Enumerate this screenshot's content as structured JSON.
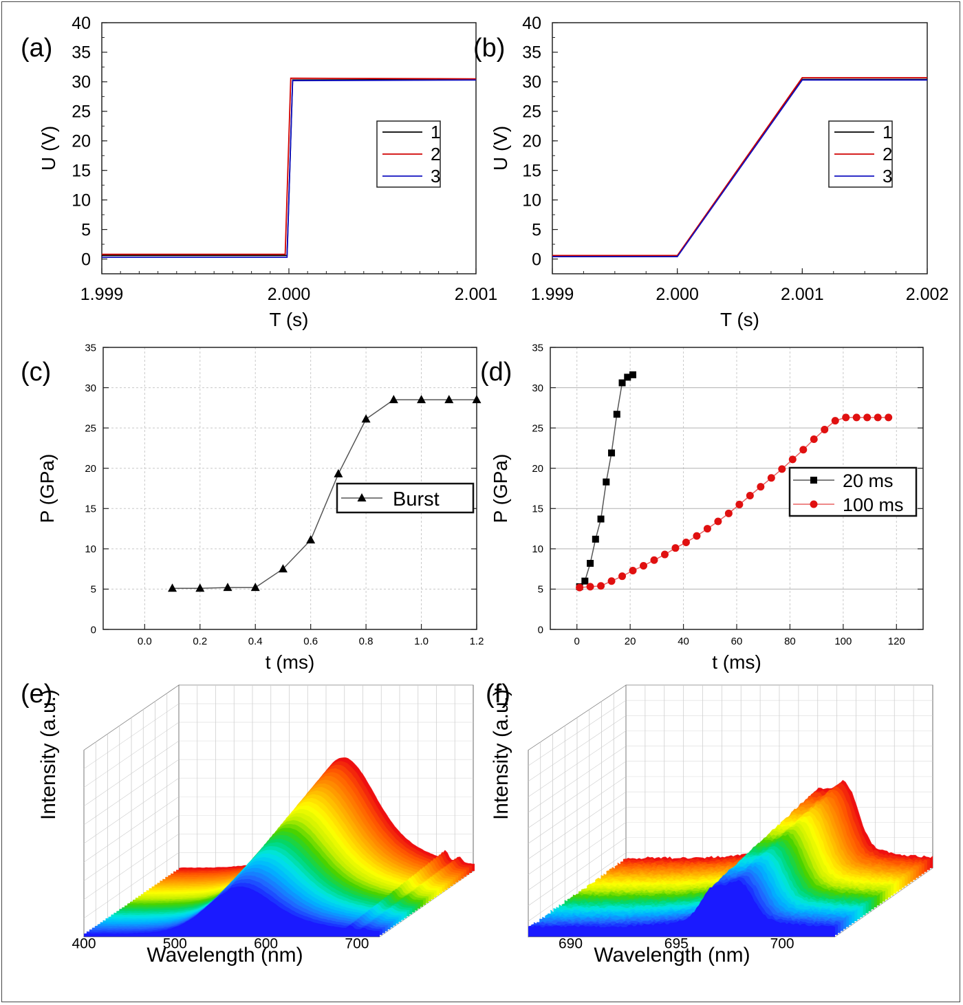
{
  "chart_data": [
    {
      "id": "a",
      "panel_label": "(a)",
      "type": "line",
      "xlabel": "T (s)",
      "ylabel": "U (V)",
      "xlim": [
        1.999,
        2.001
      ],
      "ylim": [
        -2.5,
        40
      ],
      "xticks": [
        "1.999",
        "2.000",
        "2.001"
      ],
      "yticks": [
        "0",
        "5",
        "10",
        "15",
        "20",
        "25",
        "30",
        "35",
        "40"
      ],
      "legend": "right",
      "series": [
        {
          "name": "1",
          "color": "#000000",
          "points": [
            [
              1.999,
              0.6
            ],
            [
              1.99999,
              0.6
            ],
            [
              2.00002,
              30.3
            ],
            [
              2.001,
              30.4
            ]
          ]
        },
        {
          "name": "2",
          "color": "#d00000",
          "points": [
            [
              1.999,
              0.8
            ],
            [
              1.99998,
              0.8
            ],
            [
              2.00001,
              30.6
            ],
            [
              2.001,
              30.5
            ]
          ]
        },
        {
          "name": "3",
          "color": "#1010c0",
          "points": [
            [
              1.999,
              0.3
            ],
            [
              1.99999,
              0.3
            ],
            [
              2.00002,
              30.2
            ],
            [
              2.001,
              30.3
            ]
          ]
        }
      ]
    },
    {
      "id": "b",
      "panel_label": "(b)",
      "type": "line",
      "xlabel": "T (s)",
      "ylabel": "U (V)",
      "xlim": [
        1.999,
        2.002
      ],
      "ylim": [
        -2.5,
        40
      ],
      "xticks": [
        "1.999",
        "2.000",
        "2.001",
        "2.002"
      ],
      "yticks": [
        "0",
        "5",
        "10",
        "15",
        "20",
        "25",
        "30",
        "35",
        "40"
      ],
      "legend": "right",
      "series": [
        {
          "name": "1",
          "color": "#000000",
          "points": [
            [
              1.999,
              0.5
            ],
            [
              2.0,
              0.5
            ],
            [
              2.001,
              30.4
            ],
            [
              2.002,
              30.4
            ]
          ]
        },
        {
          "name": "2",
          "color": "#d00000",
          "points": [
            [
              1.999,
              0.6
            ],
            [
              2.0,
              0.6
            ],
            [
              2.001,
              30.7
            ],
            [
              2.002,
              30.7
            ]
          ]
        },
        {
          "name": "3",
          "color": "#1010c0",
          "points": [
            [
              1.999,
              0.4
            ],
            [
              2.0,
              0.4
            ],
            [
              2.001,
              30.3
            ],
            [
              2.002,
              30.3
            ]
          ]
        }
      ]
    },
    {
      "id": "c",
      "panel_label": "(c)",
      "type": "line",
      "xlabel": "t (ms)",
      "ylabel": "P (GPa)",
      "xlim": [
        -0.15,
        1.2
      ],
      "ylim": [
        0,
        35
      ],
      "grid": true,
      "xticks": [
        "0.0",
        "0.2",
        "0.4",
        "0.6",
        "0.8",
        "1.0",
        "1.2"
      ],
      "yticks": [
        "0",
        "5",
        "10",
        "15",
        "20",
        "25",
        "30",
        "35"
      ],
      "legend": "center-right",
      "series": [
        {
          "name": "Burst",
          "marker": "triangle",
          "color": "#000000",
          "x": [
            0.1,
            0.2,
            0.3,
            0.4,
            0.5,
            0.6,
            0.7,
            0.8,
            0.9,
            1.0,
            1.1,
            1.2
          ],
          "y": [
            5.1,
            5.1,
            5.2,
            5.2,
            7.5,
            11.1,
            19.3,
            26.1,
            28.5,
            28.5,
            28.5,
            28.5
          ]
        }
      ]
    },
    {
      "id": "d",
      "panel_label": "(d)",
      "type": "line",
      "xlabel": "t (ms)",
      "ylabel": "P (GPa)",
      "xlim": [
        -10,
        130
      ],
      "ylim": [
        0,
        35
      ],
      "grid": true,
      "xticks": [
        "0",
        "20",
        "40",
        "60",
        "80",
        "100",
        "120"
      ],
      "yticks": [
        "0",
        "5",
        "10",
        "15",
        "20",
        "25",
        "30",
        "35"
      ],
      "legend": "right",
      "series": [
        {
          "name": "20 ms",
          "marker": "square",
          "color": "#000000",
          "x": [
            1,
            3,
            5,
            7,
            9,
            11,
            13,
            15,
            17,
            19,
            21
          ],
          "y": [
            5.3,
            6.0,
            8.2,
            11.2,
            13.7,
            18.3,
            21.9,
            26.7,
            30.6,
            31.3,
            31.6
          ]
        },
        {
          "name": "100 ms",
          "marker": "circle",
          "color": "#e01010",
          "x": [
            1,
            5,
            9,
            13,
            17,
            21,
            25,
            29,
            33,
            37,
            41,
            45,
            49,
            53,
            57,
            61,
            65,
            69,
            73,
            77,
            81,
            85,
            89,
            93,
            97,
            101,
            105,
            109,
            113,
            117
          ],
          "y": [
            5.2,
            5.3,
            5.4,
            6.0,
            6.6,
            7.3,
            7.9,
            8.6,
            9.3,
            10.1,
            10.8,
            11.6,
            12.5,
            13.4,
            14.4,
            15.5,
            16.6,
            17.7,
            18.8,
            19.9,
            21.1,
            22.3,
            23.6,
            24.8,
            25.9,
            26.3,
            26.3,
            26.3,
            26.3,
            26.3
          ]
        }
      ]
    },
    {
      "id": "e",
      "panel_label": "(e)",
      "type": "area",
      "xlabel": "Wavelength (nm)",
      "ylabel": "Intensity (a.u.)",
      "xlim": [
        400,
        725
      ],
      "xticks": [
        "400",
        "500",
        "600",
        "700"
      ],
      "layers": 36,
      "palette": [
        "#1a1aff",
        "#1e6eff",
        "#00b4ff",
        "#00e6e6",
        "#00d66e",
        "#46d200",
        "#c8f000",
        "#ffff00",
        "#ffc800",
        "#ff9000",
        "#ff5a00",
        "#ee1010"
      ],
      "peak_center_nm": 570,
      "secondary_peaks_nm": [
        694,
        708
      ]
    },
    {
      "id": "f",
      "panel_label": "(f)",
      "type": "area",
      "xlabel": "Wavelength (nm)",
      "ylabel": "Intensity (a.u.)",
      "xlim": [
        688,
        702.5
      ],
      "xticks": [
        "690",
        "695",
        "700"
      ],
      "layers": 36,
      "palette": [
        "#1a1aff",
        "#1e6eff",
        "#00b4ff",
        "#00e6e6",
        "#00d66e",
        "#46d200",
        "#c8f000",
        "#ffff00",
        "#ffc800",
        "#ff9000",
        "#ff5a00",
        "#ee1010"
      ],
      "peaks_nm": [
        696.4,
        697.8
      ]
    }
  ]
}
